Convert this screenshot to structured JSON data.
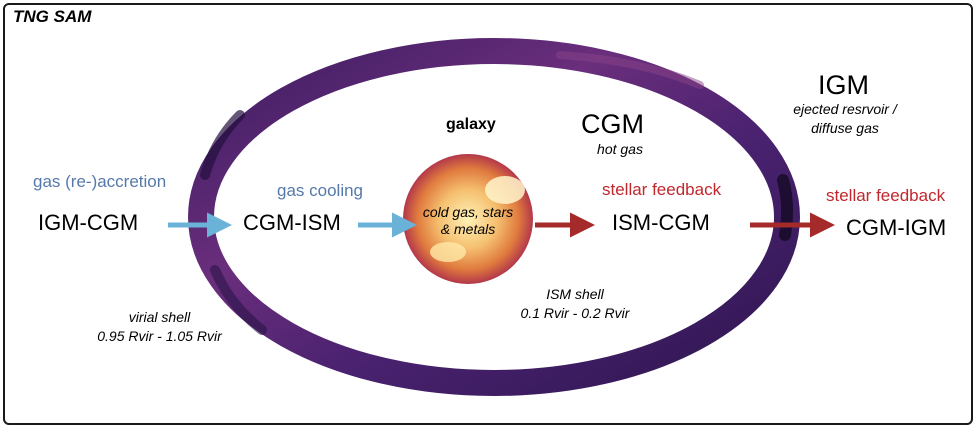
{
  "title": "TNG SAM",
  "regions": {
    "igm": {
      "label": "IGM",
      "sub_line1": "ejected resrvoir /",
      "sub_line2": "diffuse gas"
    },
    "cgm": {
      "label": "CGM",
      "sub": "hot gas"
    },
    "galaxy": {
      "label": "galaxy",
      "sub_line1": "cold gas, stars",
      "sub_line2": "& metals"
    }
  },
  "shells": {
    "virial": {
      "line1": "virial shell",
      "line2": "0.95 Rvir - 1.05 Rvir"
    },
    "ism": {
      "line1": "ISM shell",
      "line2": "0.1 Rvir - 0.2 Rvir"
    }
  },
  "flows": {
    "accretion": {
      "process": "gas (re-)accretion",
      "name": "IGM-CGM",
      "color": "#6ab2d8"
    },
    "cooling": {
      "process": "gas cooling",
      "name": "CGM-ISM",
      "color": "#6ab2d8"
    },
    "feedback_inner": {
      "process": "stellar feedback",
      "name": "ISM-CGM",
      "color": "#a52a2a"
    },
    "feedback_outer": {
      "process": "stellar feedback",
      "name": "CGM-IGM",
      "color": "#a52a2a"
    }
  },
  "colors": {
    "shell_dark": "#2a1448",
    "shell_mid": "#4e2573",
    "shell_light": "#7a3a82",
    "galaxy_core": "#ffeaa0",
    "galaxy_mid": "#f2a24e",
    "galaxy_edge": "#b3384a",
    "accretion_text": "#5579ab",
    "feedback_text": "#c1272d"
  }
}
